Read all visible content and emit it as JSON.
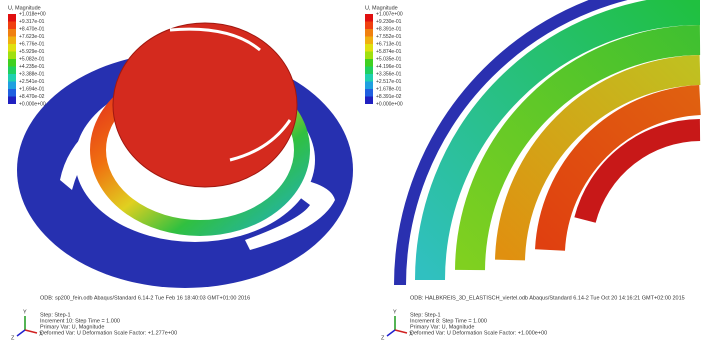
{
  "panels": [
    {
      "legend": {
        "title": "U, Magnitude",
        "labels": [
          "+1.018e+00",
          "+9.317e-01",
          "+8.470e-01",
          "+7.623e-01",
          "+6.776e-01",
          "+5.929e-01",
          "+5.082e-01",
          "+4.235e-01",
          "+3.388e-01",
          "+2.541e-01",
          "+1.694e-01",
          "+8.470e-02",
          "+0.000e+00"
        ]
      },
      "odb": "ODB: sp200_fein.odb    Abaqus/Standard 6.14-2    Tue Feb 16 18:40:03 GMT+01:00 2016",
      "step": "Step: Step-1",
      "increment": "Increment    10: Step Time =    1.000",
      "primary": "Primary Var: U, Magnitude",
      "deformed": "Deformed Var: U   Deformation Scale Factor: +1.277e+00",
      "triad": [
        "Y",
        "Z",
        "X"
      ]
    },
    {
      "legend": {
        "title": "U, Magnitude",
        "labels": [
          "+1.007e+00",
          "+9.230e-01",
          "+8.391e-01",
          "+7.552e-01",
          "+6.713e-01",
          "+5.874e-01",
          "+5.035e-01",
          "+4.196e-01",
          "+3.356e-01",
          "+2.517e-01",
          "+1.678e-01",
          "+8.391e-02",
          "+0.000e+00"
        ]
      },
      "odb": "ODB: HALBKREIS_3D_ELASTISCH_viertel.odb    Abaqus/Standard 6.14-2    Tue Oct 20 14:16:21 GMT+02:00 2015",
      "step": "Step: Step-1",
      "increment": "Increment    8: Step Time =    1.000",
      "primary": "Primary Var: U, Magnitude",
      "deformed": "Deformed Var: U   Deformation Scale Factor: +1.000e+00",
      "triad": [
        "Y",
        "Z",
        "X"
      ]
    }
  ]
}
